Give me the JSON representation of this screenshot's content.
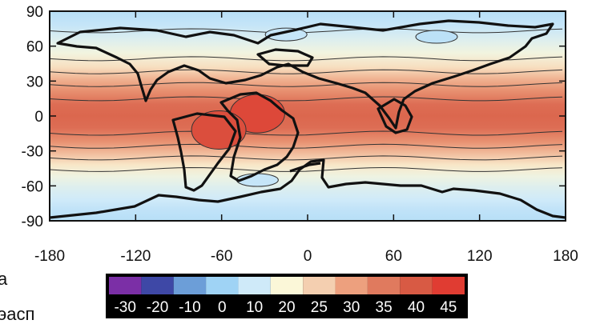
{
  "chart_data": {
    "type": "heatmap",
    "title": "",
    "xlabel": "",
    "ylabel": "",
    "xlim": [
      -180,
      180
    ],
    "ylim": [
      -90,
      90
    ],
    "x_ticks": [
      "-180",
      "-120",
      "-60",
      "0",
      "60",
      "120",
      "180"
    ],
    "y_ticks": [
      "90",
      "60",
      "30",
      "0",
      "-30",
      "-60",
      "-90"
    ],
    "contour_levels": [
      -30,
      -20,
      -10,
      0,
      10,
      20,
      25,
      30,
      35,
      40,
      45
    ],
    "colorbar": {
      "labels": [
        "-30",
        "-20",
        "-10",
        "0",
        "10",
        "20",
        "25",
        "30",
        "35",
        "40",
        "45"
      ],
      "colors": [
        "#7b2fa6",
        "#3e48a6",
        "#6c9ed8",
        "#9fd3f5",
        "#cfeaf9",
        "#fbf7d8",
        "#f4cfb0",
        "#eda07e",
        "#e07a5e",
        "#d85a44",
        "#e03c32"
      ]
    },
    "zonal_profile": [
      {
        "lat": 90,
        "value": 5
      },
      {
        "lat": 78,
        "value": 8
      },
      {
        "lat": 66,
        "value": 13
      },
      {
        "lat": 54,
        "value": 18
      },
      {
        "lat": 42,
        "value": 23
      },
      {
        "lat": 32,
        "value": 28
      },
      {
        "lat": 22,
        "value": 32
      },
      {
        "lat": 10,
        "value": 37
      },
      {
        "lat": 0,
        "value": 38
      },
      {
        "lat": -10,
        "value": 37
      },
      {
        "lat": -22,
        "value": 32
      },
      {
        "lat": -32,
        "value": 27
      },
      {
        "lat": -42,
        "value": 22
      },
      {
        "lat": -52,
        "value": 17
      },
      {
        "lat": -62,
        "value": 13
      },
      {
        "lat": -72,
        "value": 10
      },
      {
        "lat": -80,
        "value": 7
      },
      {
        "lat": -90,
        "value": 5
      }
    ],
    "anomalies": [
      {
        "lon": -35,
        "lat": 2,
        "value": 43
      },
      {
        "lon": -62,
        "lat": -12,
        "value": 42
      },
      {
        "lon": -35,
        "lat": -55,
        "value": 8
      },
      {
        "lon": -15,
        "lat": 70,
        "value": 8
      },
      {
        "lon": 90,
        "lat": 68,
        "value": 6
      }
    ]
  },
  "text_fragments": [
    "a",
    "эасп"
  ]
}
